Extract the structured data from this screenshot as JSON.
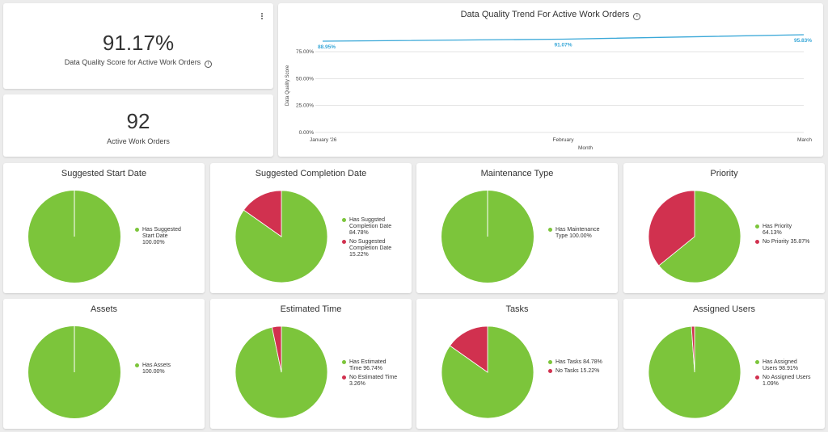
{
  "colors": {
    "has": "#7cc53b",
    "no": "#d1314f",
    "line": "#3aa8d8",
    "grid": "#e3e3e3"
  },
  "kpi_score": {
    "value": "91.17%",
    "label": "Data Quality Score for Active Work Orders"
  },
  "kpi_orders": {
    "value": "92",
    "label": "Active Work Orders"
  },
  "trend": {
    "title": "Data Quality Trend For Active Work Orders",
    "ylabel": "Data Quality Score",
    "xlabel": "Month",
    "y_ticks": [
      "0.00%",
      "25.00%",
      "50.00%",
      "75.00%"
    ]
  },
  "chart_data": [
    {
      "type": "line",
      "title": "Data Quality Trend For Active Work Orders",
      "xlabel": "Month",
      "ylabel": "Data Quality Score",
      "categories": [
        "January '26",
        "February",
        "March"
      ],
      "series": [
        {
          "values": [
            88.95,
            91.07,
            95.83
          ],
          "labels": [
            "88.95%",
            "91.07%",
            "95.83%"
          ]
        }
      ],
      "ylim": [
        0,
        100
      ],
      "y_ticks": [
        "0.00%",
        "25.00%",
        "50.00%",
        "75.00%"
      ],
      "grid": true
    },
    {
      "type": "pie",
      "title": "Suggested Start Date",
      "slices": [
        {
          "label": "Has Suggested Start Date",
          "value": 100.0,
          "pct": "100.00%"
        }
      ]
    },
    {
      "type": "pie",
      "title": "Suggested Completion Date",
      "slices": [
        {
          "label": "Has Suggsted Completion Date",
          "value": 84.78,
          "pct": "84.78%"
        },
        {
          "label": "No Suggested Completion Date",
          "value": 15.22,
          "pct": "15.22%"
        }
      ]
    },
    {
      "type": "pie",
      "title": "Maintenance Type",
      "slices": [
        {
          "label": "Has Maintenance Type",
          "value": 100.0,
          "pct": "100.00%"
        }
      ]
    },
    {
      "type": "pie",
      "title": "Priority",
      "slices": [
        {
          "label": "Has Priority",
          "value": 64.13,
          "pct": "64.13%"
        },
        {
          "label": "No Priority",
          "value": 35.87,
          "pct": "35.87%"
        }
      ]
    },
    {
      "type": "pie",
      "title": "Assets",
      "slices": [
        {
          "label": "Has Assets",
          "value": 100.0,
          "pct": "100.00%"
        }
      ]
    },
    {
      "type": "pie",
      "title": "Estimated Time",
      "slices": [
        {
          "label": "Has Estimated Time",
          "value": 96.74,
          "pct": "96.74%"
        },
        {
          "label": "No Estimated Time",
          "value": 3.26,
          "pct": "3.26%"
        }
      ]
    },
    {
      "type": "pie",
      "title": "Tasks",
      "slices": [
        {
          "label": "Has Tasks",
          "value": 84.78,
          "pct": "84.78%"
        },
        {
          "label": "No Tasks",
          "value": 15.22,
          "pct": "15.22%"
        }
      ]
    },
    {
      "type": "pie",
      "title": "Assigned Users",
      "slices": [
        {
          "label": "Has Assigned Users",
          "value": 98.91,
          "pct": "98.91%"
        },
        {
          "label": "No Assigned Users",
          "value": 1.09,
          "pct": "1.09%"
        }
      ]
    }
  ]
}
